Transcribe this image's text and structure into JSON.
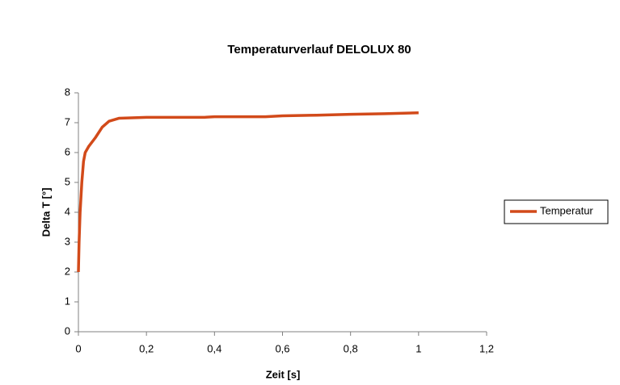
{
  "chart_data": {
    "type": "line",
    "title": "Temperaturverlauf DELOLUX 80",
    "x_label": "Zeit [s]",
    "y_label": "Delta T [°]",
    "x": [
      0,
      0.002,
      0.005,
      0.01,
      0.015,
      0.02,
      0.03,
      0.05,
      0.07,
      0.09,
      0.12,
      0.2,
      0.37,
      0.4,
      0.55,
      0.6,
      0.7,
      0.8,
      0.9,
      1.0
    ],
    "series": [
      {
        "name": "Temperatur",
        "color": "#d24a1a",
        "values": [
          2,
          3,
          4,
          5,
          5.7,
          6,
          6.2,
          6.5,
          6.85,
          7.05,
          7.15,
          7.18,
          7.18,
          7.2,
          7.2,
          7.23,
          7.25,
          7.28,
          7.3,
          7.33
        ]
      }
    ],
    "xlim": [
      0,
      1.2
    ],
    "xticks": [
      0,
      {
        "value": 0.2,
        "label": "0,2"
      },
      {
        "value": 0.4,
        "label": "0,4"
      },
      {
        "value": 0.6,
        "label": "0,6"
      },
      {
        "value": 0.8,
        "label": "0,8"
      },
      1,
      {
        "value": 1.2,
        "label": "1,2"
      }
    ],
    "ylim": [
      0,
      8
    ],
    "yticks": [
      0,
      1,
      2,
      3,
      4,
      5,
      6,
      7,
      8
    ],
    "grid": false,
    "legend": "right"
  }
}
